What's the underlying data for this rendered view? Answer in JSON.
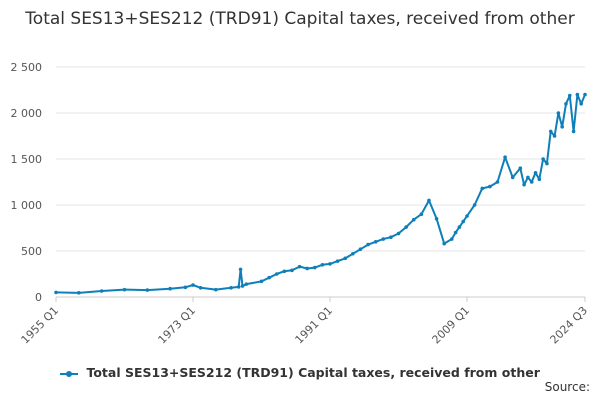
{
  "colors": {
    "series": "#0f7fb9",
    "grid": "#e6e6e6",
    "axis": "#cccccc"
  },
  "source_label": "Source:",
  "chart_data": {
    "type": "line",
    "title": "Total SES13+SES212 (TRD91) Capital taxes, received from other",
    "xlabel": "",
    "ylabel": "",
    "ylim": [
      0,
      2500
    ],
    "y_ticks": [
      0,
      500,
      1000,
      1500,
      2000,
      2500
    ],
    "y_tick_labels": [
      "0",
      "500",
      "1 000",
      "1 500",
      "2 000",
      "2 500"
    ],
    "x_tick_labels": [
      "1955 Q1",
      "1973 Q1",
      "1991 Q1",
      "2009 Q1",
      "2024 Q3"
    ],
    "grid": true,
    "legend": "bottom",
    "series": [
      {
        "name": "Total SES13+SES212 (TRD91) Capital taxes, received from other",
        "x": [
          "1955 Q1",
          "1958 Q1",
          "1961 Q1",
          "1964 Q1",
          "1967 Q1",
          "1970 Q1",
          "1972 Q1",
          "1973 Q1",
          "1974 Q1",
          "1976 Q1",
          "1978 Q1",
          "1979 Q1",
          "1979 Q2",
          "1979 Q3",
          "1980 Q1",
          "1982 Q1",
          "1983 Q1",
          "1984 Q1",
          "1985 Q1",
          "1986 Q1",
          "1987 Q1",
          "1988 Q1",
          "1989 Q1",
          "1990 Q1",
          "1991 Q1",
          "1992 Q1",
          "1993 Q1",
          "1994 Q1",
          "1995 Q1",
          "1996 Q1",
          "1997 Q1",
          "1998 Q1",
          "1999 Q1",
          "2000 Q1",
          "2001 Q1",
          "2002 Q1",
          "2003 Q1",
          "2004 Q1",
          "2005 Q1",
          "2006 Q1",
          "2007 Q1",
          "2007 Q3",
          "2008 Q1",
          "2008 Q3",
          "2009 Q1",
          "2010 Q1",
          "2011 Q1",
          "2012 Q1",
          "2013 Q1",
          "2014 Q1",
          "2015 Q1",
          "2016 Q1",
          "2016 Q3",
          "2017 Q1",
          "2017 Q3",
          "2018 Q1",
          "2018 Q3",
          "2019 Q1",
          "2019 Q3",
          "2020 Q1",
          "2020 Q3",
          "2021 Q1",
          "2021 Q3",
          "2022 Q1",
          "2022 Q3",
          "2023 Q1",
          "2023 Q3",
          "2024 Q1",
          "2024 Q3"
        ],
        "values": [
          50,
          45,
          65,
          80,
          75,
          90,
          105,
          130,
          100,
          80,
          100,
          110,
          300,
          120,
          140,
          170,
          210,
          250,
          280,
          290,
          330,
          310,
          320,
          350,
          360,
          390,
          420,
          470,
          520,
          570,
          600,
          630,
          650,
          690,
          760,
          840,
          900,
          1050,
          850,
          580,
          630,
          700,
          760,
          820,
          880,
          1000,
          1180,
          1200,
          1250,
          1520,
          1300,
          1400,
          1220,
          1300,
          1250,
          1350,
          1280,
          1500,
          1450,
          1800,
          1750,
          2000,
          1850,
          2100,
          2190,
          1800,
          2200,
          2100,
          2200
        ]
      }
    ]
  }
}
